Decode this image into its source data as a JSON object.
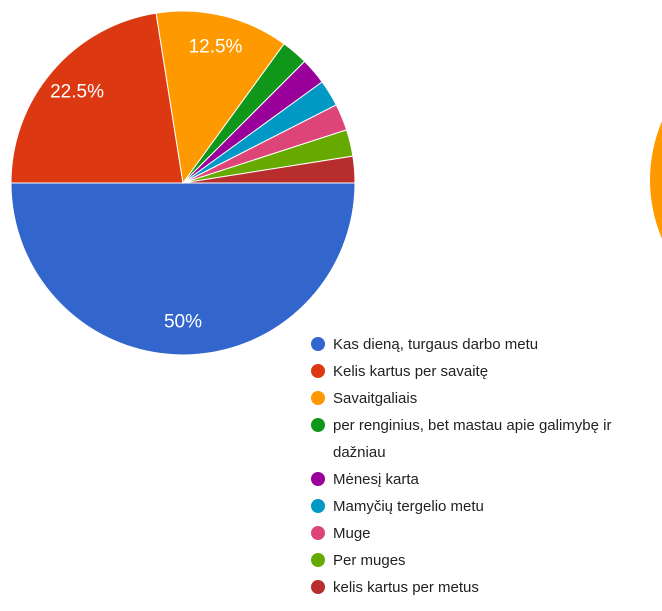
{
  "chart_data": {
    "type": "pie",
    "categories": [
      "Kas dieną, turgaus darbo metu",
      "Kelis kartus per savaitę",
      "Savaitgaliais",
      "per renginius, bet mastau apie galimybę ir dažniau",
      "Mėnesį karta",
      "Mamyčių tergelio metu",
      "Muge",
      "Per muges",
      "kelis kartus per metus"
    ],
    "values": [
      50,
      22.5,
      12.5,
      2.5,
      2.5,
      2.5,
      2.5,
      2.5,
      2.5
    ],
    "value_labels": [
      "50%",
      "22.5%",
      "12.5%",
      null,
      null,
      null,
      null,
      null,
      null
    ],
    "colors": [
      "#3366cc",
      "#dc3912",
      "#ff9900",
      "#109618",
      "#990099",
      "#0099c6",
      "#dd4477",
      "#66aa00",
      "#b82e2e"
    ]
  }
}
